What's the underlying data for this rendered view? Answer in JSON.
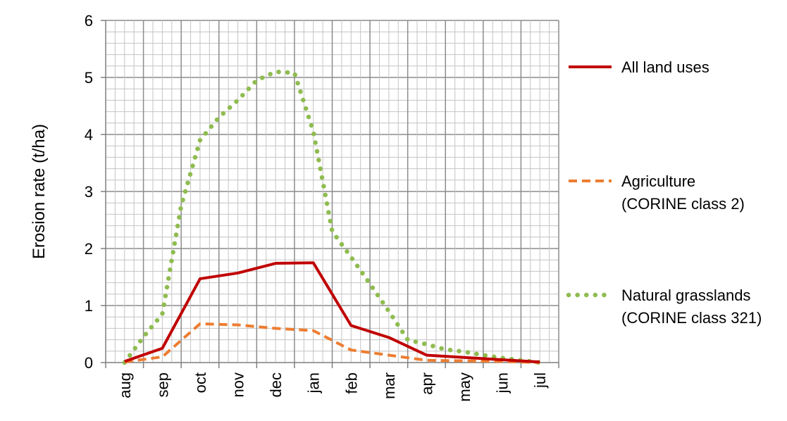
{
  "chart_data": {
    "type": "line",
    "title": "",
    "xlabel": "",
    "ylabel": "Erosion rate (t/ha)",
    "ylim": [
      0,
      6
    ],
    "yticks": [
      "0",
      "1",
      "2",
      "3",
      "4",
      "5",
      "6"
    ],
    "categories": [
      "aug",
      "sep",
      "oct",
      "nov",
      "dec",
      "jan",
      "feb",
      "mar",
      "apr",
      "may",
      "jun",
      "jul"
    ],
    "grid": true,
    "legend_position": "right",
    "series": [
      {
        "name": "All land uses",
        "color": "#C00000",
        "style": "solid",
        "x": [
          0,
          1,
          2,
          3,
          4,
          5,
          6,
          7,
          8,
          9,
          10,
          11
        ],
        "values": [
          0.02,
          0.25,
          1.47,
          1.57,
          1.74,
          1.75,
          0.65,
          0.44,
          0.13,
          0.09,
          0.05,
          0.01
        ]
      },
      {
        "name": "Agriculture\n(CORINE class 2)",
        "color": "#ED7D31",
        "style": "dashed",
        "x": [
          0,
          1,
          2,
          3,
          4,
          5,
          6,
          7,
          8,
          9,
          10,
          11
        ],
        "values": [
          0.01,
          0.1,
          0.68,
          0.66,
          0.6,
          0.56,
          0.22,
          0.13,
          0.04,
          0.03,
          0.02,
          0.0
        ]
      },
      {
        "name": "Natural grasslands\n(CORINE class 321)",
        "color": "#8FBC50",
        "style": "dotted",
        "x": [
          0,
          0.5,
          1,
          1.5,
          2,
          2.5,
          3,
          3.5,
          4,
          4.5,
          5,
          5.5,
          6,
          6.5,
          7,
          7.5,
          8,
          8.5,
          9,
          9.5,
          10,
          10.5,
          11
        ],
        "values": [
          0.0,
          0.45,
          0.85,
          2.75,
          3.9,
          4.3,
          4.6,
          4.95,
          5.1,
          5.08,
          4.05,
          2.3,
          1.85,
          1.38,
          0.9,
          0.4,
          0.32,
          0.23,
          0.19,
          0.13,
          0.08,
          0.04,
          0.0
        ]
      }
    ]
  }
}
